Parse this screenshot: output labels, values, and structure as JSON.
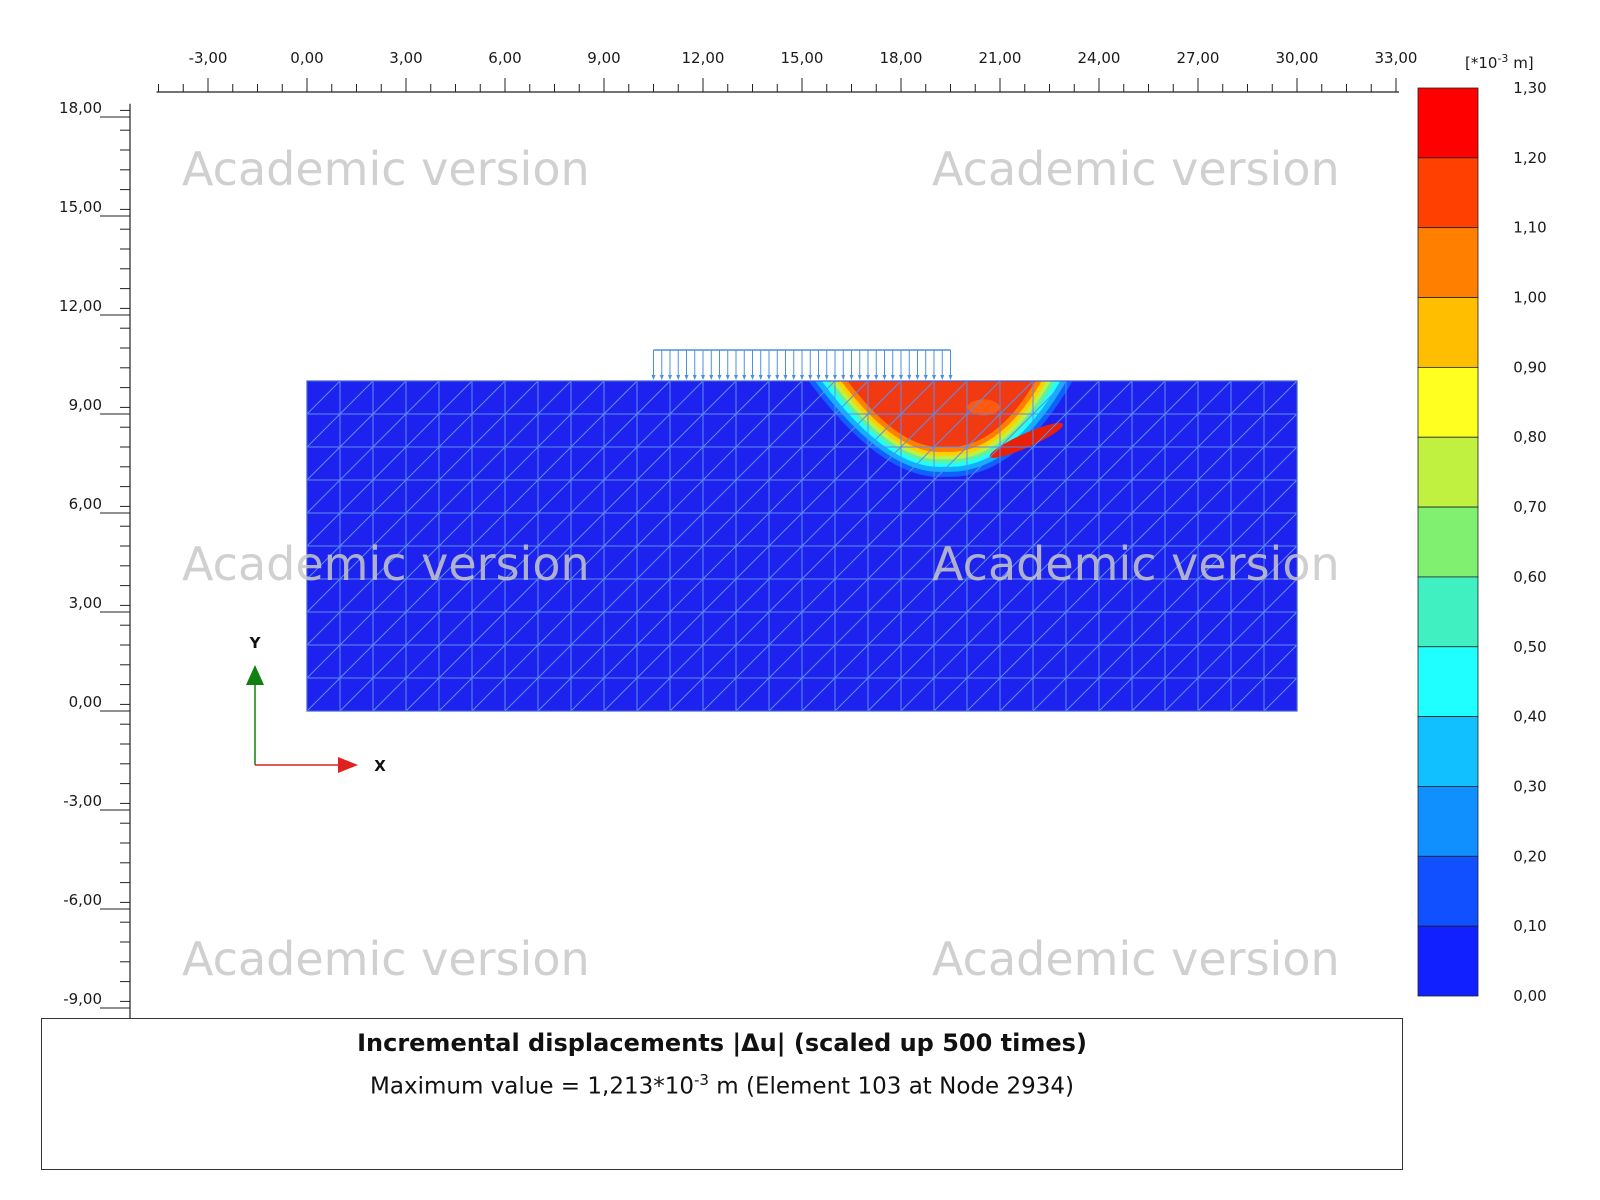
{
  "x_axis": {
    "min": -4.5,
    "max": 33,
    "major_ticks": [
      -3,
      0,
      3,
      6,
      9,
      12,
      15,
      18,
      21,
      24,
      27,
      30,
      33
    ],
    "minor_step": 0.75,
    "labels": [
      "-3,00",
      "0,00",
      "3,00",
      "6,00",
      "9,00",
      "12,00",
      "15,00",
      "18,00",
      "21,00",
      "24,00",
      "27,00",
      "30,00",
      "33,00"
    ]
  },
  "y_axis": {
    "min": -9.4,
    "max": 18.4,
    "major_ticks": [
      18,
      15,
      12,
      9,
      6,
      3,
      0,
      -3,
      -6,
      -9
    ],
    "minor_step": 0.6,
    "labels": [
      "18,00",
      "15,00",
      "12,00",
      "9,00",
      "6,00",
      "3,00",
      "0,00",
      "-3,00",
      "-6,00",
      "-9,00"
    ]
  },
  "model": {
    "x_range": [
      0,
      30
    ],
    "y_range": [
      0,
      10
    ],
    "mesh_cols": 30,
    "mesh_rows": 10,
    "base_color": "#1e22ee",
    "mesh_line_color": "#5c8cf0",
    "load": {
      "x_range": [
        10.5,
        19.5
      ],
      "arrow_count": 36,
      "color": "#4a90e0"
    },
    "hot_zone": {
      "top_x_range": [
        15.2,
        23.2
      ],
      "bottom": [
        19.3,
        7.1
      ],
      "peak_color": "#f23a12"
    }
  },
  "legend": {
    "unit_prefix": "[*10",
    "unit_exp": "-3",
    "unit_suffix": " m]",
    "values": [
      "1,30",
      "1,20",
      "1,10",
      "1,00",
      "0,90",
      "0,80",
      "0,70",
      "0,60",
      "0,50",
      "0,40",
      "0,30",
      "0,20",
      "0,10",
      "0,00"
    ],
    "colors": [
      "#ff0000",
      "#ff4000",
      "#ff8000",
      "#ffbf00",
      "#ffff20",
      "#c0f040",
      "#80f070",
      "#40f0c0",
      "#20ffff",
      "#10c0ff",
      "#1090ff",
      "#1050ff",
      "#1020ff"
    ]
  },
  "axis_indicator": {
    "x_label": "X",
    "y_label": "Y",
    "x_color": "#e02020",
    "y_color": "#108010"
  },
  "watermarks": [
    "Academic version",
    "Academic version",
    "Academic version",
    "Academic version",
    "Academic version",
    "Academic version"
  ],
  "caption": {
    "title": "Incremental displacements |Δu| (scaled up 500 times)",
    "max_prefix": "Maximum value = 1,213*10",
    "max_exp": "-3",
    "max_suffix": " m (Element 103 at Node 2934)"
  }
}
